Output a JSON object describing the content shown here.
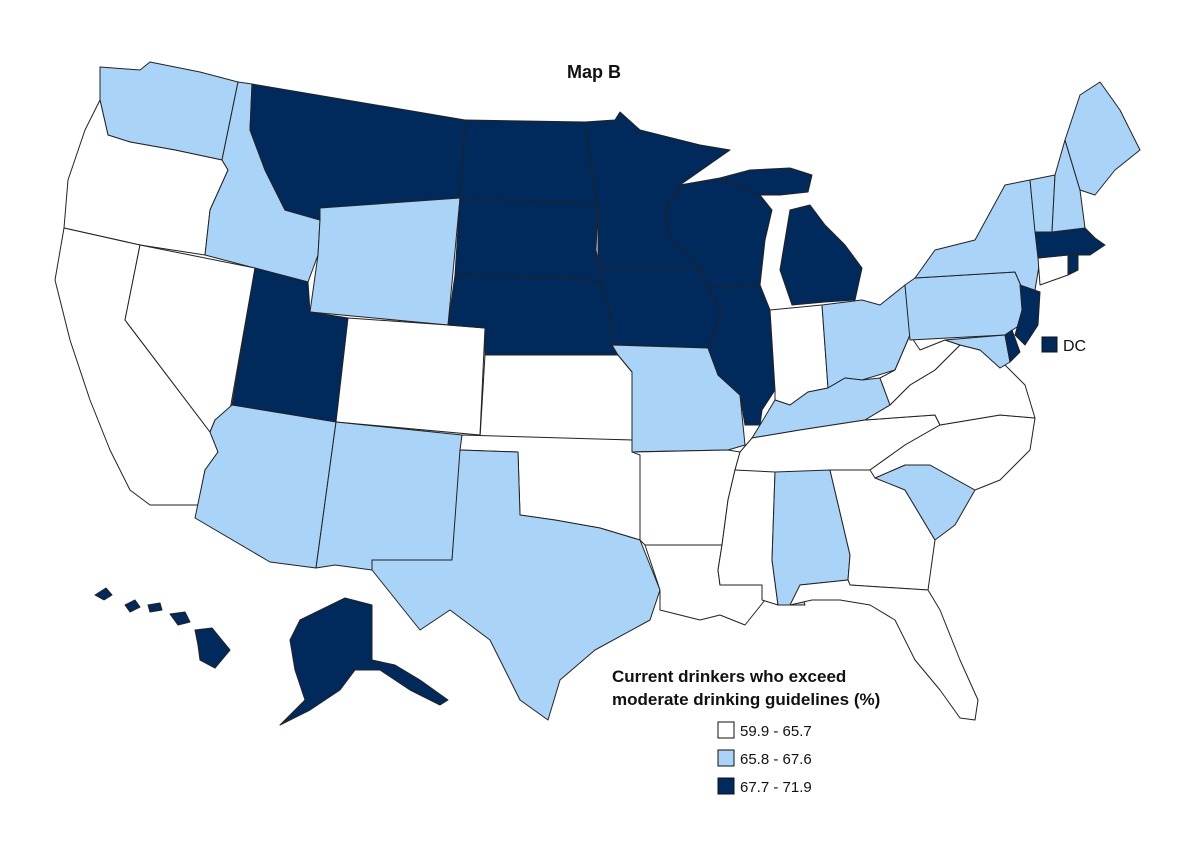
{
  "title": "Map B",
  "colors": {
    "low": "#ffffff",
    "mid": "#aad4f7",
    "high": "#002a5c",
    "stroke": "#222222"
  },
  "legend": {
    "title_line1": "Current drinkers who exceed",
    "title_line2": "moderate drinking guidelines (%)",
    "items": [
      {
        "label": "59.9 - 65.7",
        "color": "#ffffff"
      },
      {
        "label": "65.8 - 67.6",
        "color": "#aad4f7"
      },
      {
        "label": "67.7 - 71.9",
        "color": "#002a5c"
      }
    ]
  },
  "dc": {
    "label": "DC",
    "color": "#002a5c"
  }
}
